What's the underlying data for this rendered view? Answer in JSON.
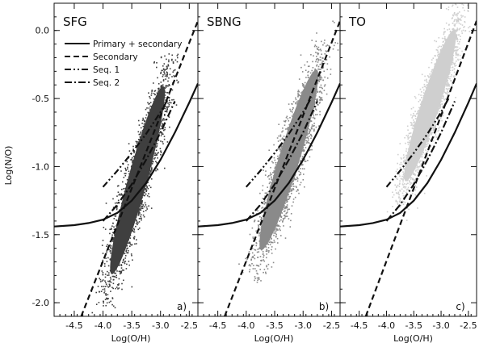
{
  "chart_data": {
    "type": "scatter",
    "ylabel": "Log(N/O)",
    "ylim": [
      -2.1,
      0.2
    ],
    "yticks": [
      "0.0",
      "-0.5",
      "-1.0",
      "-1.5",
      "-2.0"
    ],
    "ytick_values": [
      0.0,
      -0.5,
      -1.0,
      -1.5,
      -2.0
    ],
    "legend": {
      "placement": "top-left of first panel",
      "entries": [
        {
          "label": "Primary + secondary",
          "dash": "solid"
        },
        {
          "label": "Secondary",
          "dash": "dash"
        },
        {
          "label": "Seq. 1",
          "dash": "dash-dot-dot"
        },
        {
          "label": "Seq. 2",
          "dash": "dash-dot"
        }
      ]
    },
    "panels": [
      {
        "title": "SFG",
        "letter": "a)",
        "xlabel": "Log(O/H)",
        "xlim": [
          -4.85,
          -2.35
        ],
        "xticks": [
          "-4.5",
          "-4.0",
          "-3.5",
          "-3.0",
          "-2.5"
        ],
        "xtick_values": [
          -4.5,
          -4.0,
          -3.5,
          -3.0,
          -2.5
        ],
        "cloud_color": "#3f3f3f",
        "cloud": {
          "x_range": [
            -4.0,
            -2.85
          ],
          "y_range": [
            -2.05,
            -0.28
          ],
          "center": [
            -3.4,
            -1.1
          ]
        }
      },
      {
        "title": "SBNG",
        "letter": "b)",
        "xlabel": "Log(O/H)",
        "xlim": [
          -4.85,
          -2.35
        ],
        "xticks": [
          "-4.5",
          "-4.0",
          "-3.5",
          "-3.0",
          "-2.5"
        ],
        "xtick_values": [
          -4.5,
          -4.0,
          -3.5,
          -3.0,
          -2.5
        ],
        "cloud_color": "#8a8a8a",
        "cloud": {
          "x_range": [
            -4.0,
            -2.75
          ],
          "y_range": [
            -1.85,
            -0.15
          ],
          "center": [
            -3.25,
            -0.95
          ]
        }
      },
      {
        "title": "TO",
        "letter": "c)",
        "xlabel": "Log(O/H)",
        "xlim": [
          -4.85,
          -2.35
        ],
        "xticks": [
          "-4.5",
          "-4.0",
          "-3.5",
          "-3.0",
          "-2.5"
        ],
        "xtick_values": [
          -4.5,
          -4.0,
          -3.5,
          -3.0,
          -2.5
        ],
        "cloud_color": "#cfcfcf",
        "cloud": {
          "x_range": [
            -3.8,
            -2.65
          ],
          "y_range": [
            -1.25,
            0.18
          ],
          "center": [
            -3.2,
            -0.55
          ]
        }
      }
    ],
    "curves": [
      {
        "name": "Primary + secondary",
        "dash": "solid",
        "x": [
          -4.85,
          -4.5,
          -4.25,
          -4.0,
          -3.75,
          -3.5,
          -3.25,
          -3.0,
          -2.75,
          -2.5,
          -2.35
        ],
        "y": [
          -1.44,
          -1.43,
          -1.415,
          -1.39,
          -1.34,
          -1.25,
          -1.12,
          -0.95,
          -0.75,
          -0.53,
          -0.39
        ]
      },
      {
        "name": "Secondary",
        "dash": "dash",
        "x": [
          -4.38,
          -2.35
        ],
        "y": [
          -2.1,
          0.07
        ]
      },
      {
        "name": "Seq. 1",
        "dash": "dash-dot-dot",
        "x": [
          -4.0,
          -3.75,
          -3.5,
          -3.25,
          -3.0,
          -2.85
        ],
        "y": [
          -1.15,
          -1.03,
          -0.9,
          -0.76,
          -0.6,
          -0.49
        ]
      },
      {
        "name": "Seq. 2",
        "dash": "dash-dot",
        "x": [
          -4.0,
          -3.75,
          -3.5,
          -3.25,
          -3.0,
          -2.75
        ],
        "y": [
          -1.4,
          -1.28,
          -1.13,
          -0.95,
          -0.75,
          -0.52
        ]
      }
    ]
  }
}
